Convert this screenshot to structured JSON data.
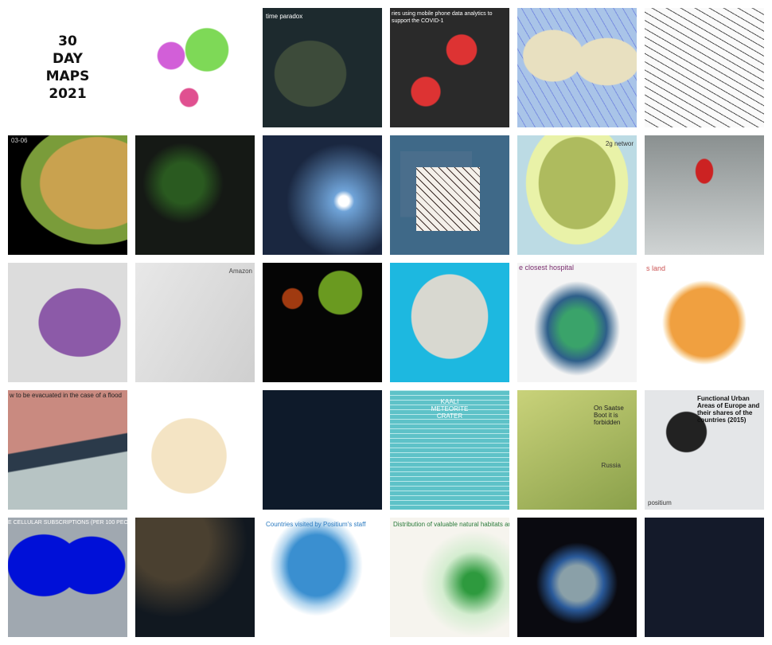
{
  "title_lines": [
    "30",
    "DAY",
    "MAPS",
    "2021"
  ],
  "tiles": {
    "t2": "time paradox",
    "t3": "ries using mobile phone data analytics to support the COVID-1",
    "t6": "03-06",
    "t10": "2g networ",
    "t13": "Amazon",
    "t16": "e closest hospital",
    "t17": "s land",
    "t18": "w to be evacuated in the case of a flood",
    "t21": "KAALI METEORITE CRATER",
    "t22a": "On Saatse Boot it is forbidden",
    "t22b": "Russia",
    "t23a": "Functional Urban Areas of Europe and their shares of the countries (2015)",
    "t23b": "positium",
    "t24": "E CELLULAR SUBSCRIPTIONS (PER 100 PEOPLE) IN 199",
    "t26": "Countries visited by Positium's staff",
    "t27": "Distribution of valuable natural habitats and mai"
  }
}
